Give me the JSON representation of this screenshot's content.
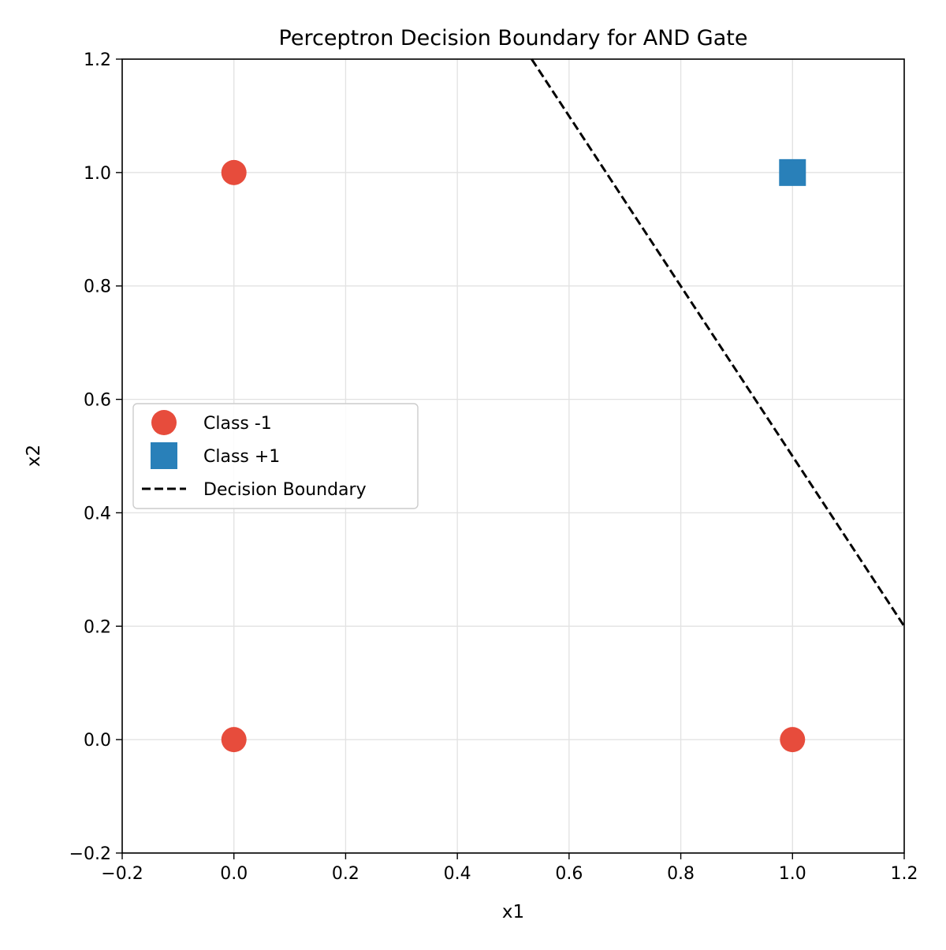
{
  "chart_data": {
    "type": "scatter",
    "title": "Perceptron Decision Boundary for AND Gate",
    "xlabel": "x1",
    "ylabel": "x2",
    "xlim": [
      -0.2,
      1.2
    ],
    "ylim": [
      -0.2,
      1.2
    ],
    "xticks": [
      -0.2,
      0.0,
      0.2,
      0.4,
      0.6,
      0.8,
      1.0,
      1.2
    ],
    "yticks": [
      -0.2,
      0.0,
      0.2,
      0.4,
      0.6,
      0.8,
      1.0,
      1.2
    ],
    "xtick_labels": [
      "−0.2",
      "0.0",
      "0.2",
      "0.4",
      "0.6",
      "0.8",
      "1.0",
      "1.2"
    ],
    "ytick_labels": [
      "−0.2",
      "0.0",
      "0.2",
      "0.4",
      "0.6",
      "0.8",
      "1.0",
      "1.2"
    ],
    "grid": true,
    "legend_position": "center-left",
    "series": [
      {
        "name": "Class -1",
        "marker": "circle",
        "color": "#e74c3c",
        "points": [
          [
            0,
            0
          ],
          [
            0,
            1
          ],
          [
            1,
            0
          ]
        ]
      },
      {
        "name": "Class +1",
        "marker": "square",
        "color": "#2980b9",
        "points": [
          [
            1,
            1
          ]
        ]
      },
      {
        "name": "Decision Boundary",
        "marker": "dashed-line",
        "color": "#000000",
        "points": [
          [
            0.533,
            1.2
          ],
          [
            1.2,
            0.2
          ]
        ]
      }
    ]
  }
}
